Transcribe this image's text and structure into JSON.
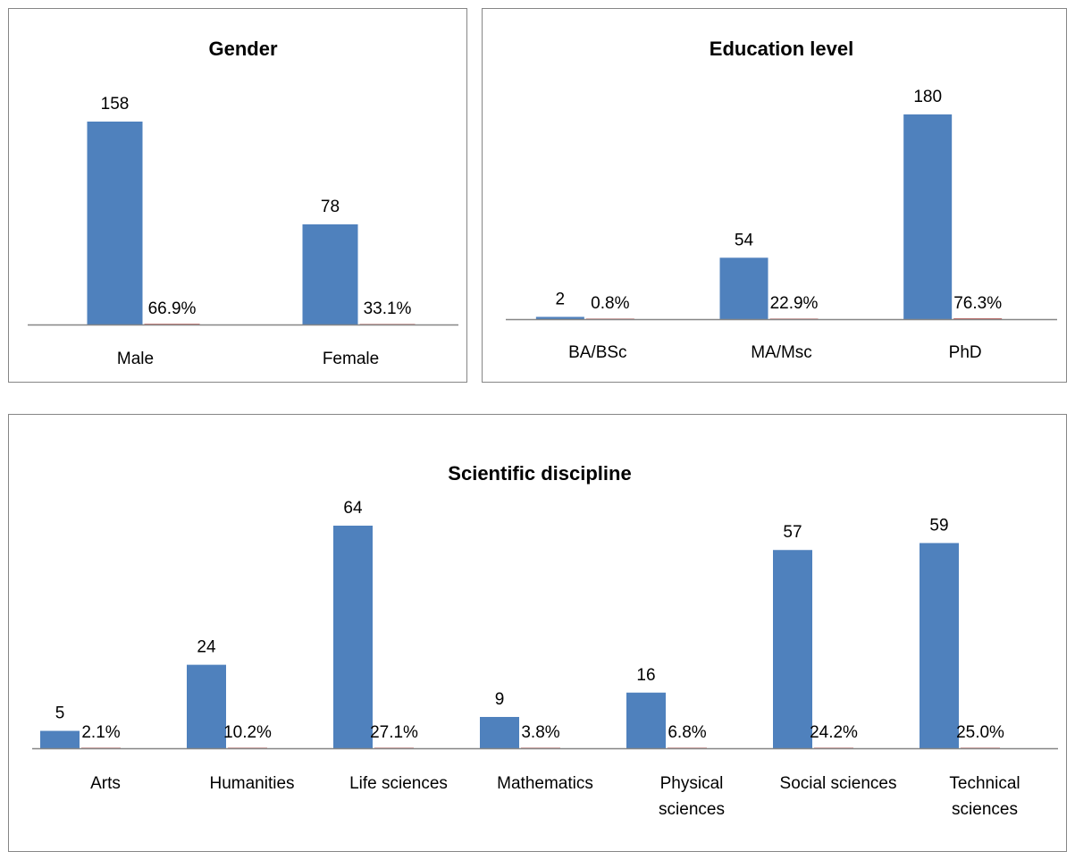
{
  "chart_data": [
    {
      "type": "bar",
      "title": "Gender",
      "categories": [
        "Male",
        "Female"
      ],
      "series": [
        {
          "values": [
            158,
            78
          ],
          "labels": [
            "158",
            "78"
          ]
        },
        {
          "values": [
            66.9,
            33.1
          ],
          "labels": [
            "66.9%",
            "33.1%"
          ]
        }
      ],
      "colors": [
        "#4f81bd",
        "#c0504d"
      ],
      "grid": false,
      "legend": "none"
    },
    {
      "type": "bar",
      "title": "Education level",
      "categories": [
        "BA/BSc",
        "MA/Msc",
        "PhD"
      ],
      "series": [
        {
          "values": [
            2,
            54,
            180
          ],
          "labels": [
            "2",
            "54",
            "180"
          ]
        },
        {
          "values": [
            0.8,
            22.9,
            76.3
          ],
          "labels": [
            "0.8%",
            "22.9%",
            "76.3%"
          ]
        }
      ],
      "colors": [
        "#4f81bd",
        "#c0504d"
      ],
      "grid": false,
      "legend": "none"
    },
    {
      "type": "bar",
      "title": "Scientific discipline",
      "categories": [
        "Arts",
        "Humanities",
        "Life sciences",
        "Mathematics",
        "Physical sciences",
        "Social sciences",
        "Technical sciences"
      ],
      "series": [
        {
          "values": [
            5,
            24,
            64,
            9,
            16,
            57,
            59
          ],
          "labels": [
            "5",
            "24",
            "64",
            "9",
            "16",
            "57",
            "59"
          ]
        },
        {
          "values": [
            2.1,
            10.2,
            27.1,
            3.8,
            6.8,
            24.2,
            25.0
          ],
          "labels": [
            "2.1%",
            "10.2%",
            "27.1%",
            "3.8%",
            "6.8%",
            "24.2%",
            "25.0%"
          ]
        }
      ],
      "colors": [
        "#4f81bd",
        "#c0504d"
      ],
      "grid": false,
      "legend": "none"
    }
  ]
}
